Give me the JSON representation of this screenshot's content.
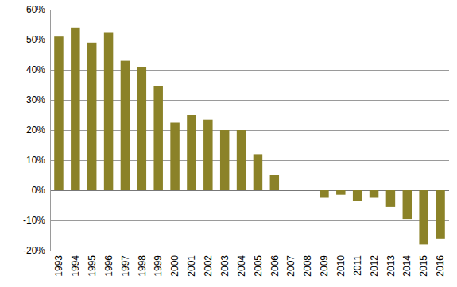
{
  "chart_data": {
    "type": "bar",
    "categories": [
      "1993",
      "1994",
      "1995",
      "1996",
      "1997",
      "1998",
      "1999",
      "2000",
      "2001",
      "2002",
      "2003",
      "2004",
      "2005",
      "2006",
      "2007",
      "2008",
      "2009",
      "2010",
      "2011",
      "2012",
      "2013",
      "2014",
      "2015",
      "2016"
    ],
    "values": [
      51,
      54,
      49,
      52.5,
      43,
      41,
      34.5,
      22.5,
      25,
      23.5,
      20,
      20,
      12,
      5,
      0,
      0,
      -2.5,
      -1.5,
      -3.5,
      -2.5,
      -5.5,
      -9.5,
      -18,
      -16
    ],
    "color": "#8b8228",
    "ylim": [
      -20,
      60
    ],
    "yticks": [
      {
        "value": -20,
        "label": "-20%"
      },
      {
        "value": -10,
        "label": "-10%"
      },
      {
        "value": 0,
        "label": "0%"
      },
      {
        "value": 10,
        "label": "10%"
      },
      {
        "value": 20,
        "label": "20%"
      },
      {
        "value": 30,
        "label": "30%"
      },
      {
        "value": 40,
        "label": "40%"
      },
      {
        "value": 50,
        "label": "50%"
      },
      {
        "value": 60,
        "label": "60%"
      }
    ],
    "grid": true
  }
}
